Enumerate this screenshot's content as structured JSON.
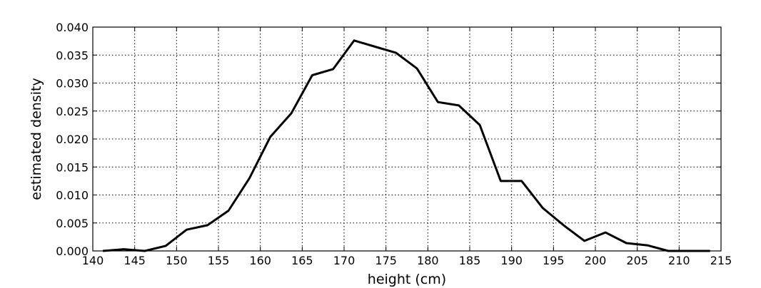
{
  "chart_data": {
    "type": "line",
    "title": "",
    "xlabel": "height (cm)",
    "ylabel": "estimated density",
    "xlim": [
      140,
      215
    ],
    "ylim": [
      0.0,
      0.04
    ],
    "x_ticks": [
      140,
      145,
      150,
      155,
      160,
      165,
      170,
      175,
      180,
      185,
      190,
      195,
      200,
      205,
      210,
      215
    ],
    "x_tick_labels": [
      "140",
      "145",
      "150",
      "155",
      "160",
      "165",
      "170",
      "175",
      "180",
      "185",
      "190",
      "195",
      "200",
      "205",
      "210",
      "215"
    ],
    "y_ticks": [
      0.0,
      0.005,
      0.01,
      0.015,
      0.02,
      0.025,
      0.03,
      0.035,
      0.04
    ],
    "y_tick_labels": [
      "0.000",
      "0.005",
      "0.010",
      "0.015",
      "0.020",
      "0.025",
      "0.030",
      "0.035",
      "0.040"
    ],
    "grid": true,
    "line_color": "#000000",
    "series": [
      {
        "x": [
          141.2,
          143.7,
          146.2,
          148.7,
          151.2,
          153.7,
          156.2,
          158.7,
          161.2,
          163.7,
          166.2,
          168.7,
          171.2,
          173.7,
          176.2,
          178.7,
          181.2,
          183.7,
          186.2,
          188.7,
          191.2,
          193.7,
          196.2,
          198.7,
          201.2,
          203.7,
          206.2,
          208.7,
          211.2,
          213.7
        ],
        "values": [
          0.0,
          0.0003,
          0.0,
          0.0009,
          0.0038,
          0.0046,
          0.0072,
          0.013,
          0.0204,
          0.0246,
          0.0314,
          0.0325,
          0.0376,
          0.0365,
          0.0354,
          0.0326,
          0.0266,
          0.026,
          0.0225,
          0.0125,
          0.0125,
          0.0077,
          0.0046,
          0.0018,
          0.0033,
          0.0014,
          0.001,
          0.0,
          0.0,
          0.0
        ]
      }
    ]
  }
}
